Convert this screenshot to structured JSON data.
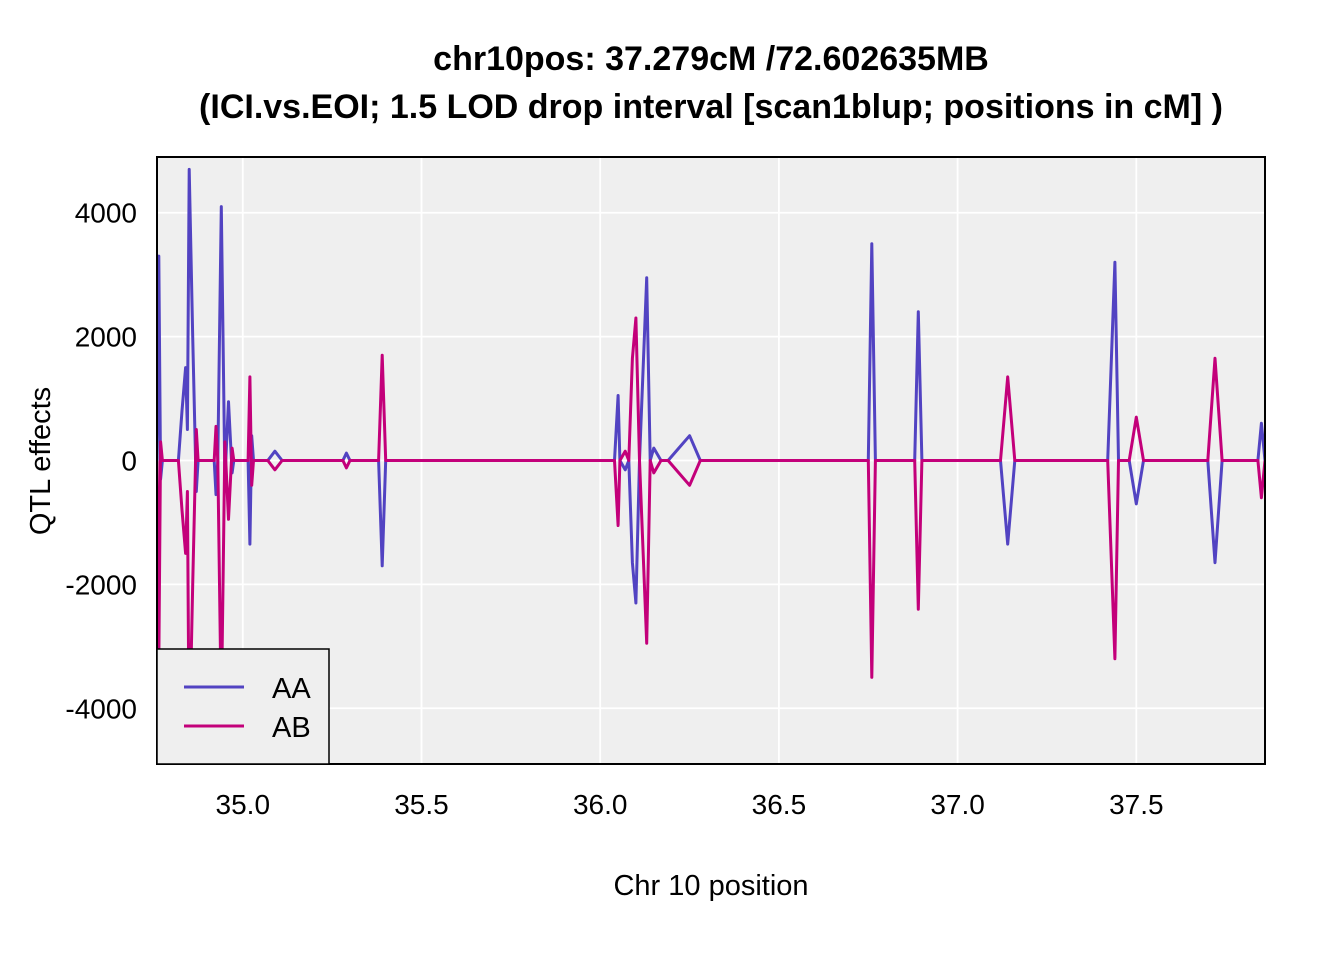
{
  "chart_data": {
    "type": "line",
    "title_line1": "chr10pos: 37.279cM /72.602635MB",
    "title_line2": "(ICI.vs.EOI; 1.5 LOD drop interval [scan1blup; positions in cM] )",
    "xlabel": "Chr 10 position",
    "ylabel": "QTL effects",
    "xlim": [
      34.76,
      37.86
    ],
    "ylim": [
      -4900,
      4900
    ],
    "x_ticks": [
      "35.0",
      "35.5",
      "36.0",
      "36.5",
      "37.0",
      "37.5"
    ],
    "y_ticks": [
      "4000",
      "2000",
      "0",
      "-2000",
      "-4000"
    ],
    "grid": true,
    "legend_position": "bottom-left",
    "colors": {
      "AA": "#5243c2",
      "AB": "#c3007a",
      "panel": "#efefef",
      "grid": "#ffffff"
    },
    "x": [
      34.76,
      34.765,
      34.77,
      34.775,
      34.8,
      34.815,
      34.82,
      34.83,
      34.84,
      34.845,
      34.85,
      34.86,
      34.87,
      34.875,
      34.88,
      34.92,
      34.925,
      34.93,
      34.94,
      34.95,
      34.96,
      34.97,
      34.975,
      34.98,
      34.985,
      34.99,
      34.995,
      35.0,
      35.01,
      35.015,
      35.02,
      35.025,
      35.03,
      35.035,
      35.04,
      35.06,
      35.07,
      35.09,
      35.11,
      35.2,
      35.28,
      35.29,
      35.3,
      35.35,
      35.38,
      35.39,
      35.4,
      35.5,
      35.6,
      35.8,
      36.0,
      36.04,
      36.05,
      36.055,
      36.07,
      36.08,
      36.09,
      36.1,
      36.11,
      36.13,
      36.14,
      36.15,
      36.17,
      36.19,
      36.22,
      36.25,
      36.28,
      36.4,
      36.6,
      36.75,
      36.76,
      36.77,
      36.86,
      36.88,
      36.89,
      36.9,
      37.0,
      37.1,
      37.12,
      37.14,
      37.16,
      37.3,
      37.42,
      37.44,
      37.45,
      37.48,
      37.5,
      37.52,
      37.6,
      37.7,
      37.72,
      37.74,
      37.8,
      37.84,
      37.85,
      37.86
    ],
    "series": [
      {
        "name": "AA",
        "values": [
          0,
          3300,
          -300,
          0,
          0,
          0,
          0,
          800,
          1500,
          500,
          4700,
          2000,
          -500,
          0,
          0,
          0,
          -550,
          0,
          4100,
          -300,
          950,
          -200,
          0,
          0,
          0,
          0,
          0,
          0,
          0,
          0,
          -1350,
          400,
          0,
          0,
          0,
          0,
          0,
          150,
          0,
          0,
          0,
          120,
          0,
          0,
          0,
          -1700,
          0,
          0,
          0,
          0,
          0,
          0,
          1050,
          0,
          -150,
          0,
          -1650,
          -2300,
          0,
          2950,
          0,
          200,
          0,
          0,
          200,
          400,
          0,
          0,
          0,
          0,
          3500,
          0,
          0,
          0,
          2400,
          0,
          0,
          0,
          0,
          -1350,
          0,
          0,
          0,
          3200,
          0,
          0,
          -700,
          0,
          0,
          0,
          -1650,
          0,
          0,
          0,
          600,
          0
        ]
      },
      {
        "name": "AB",
        "values": [
          0,
          -3300,
          300,
          0,
          0,
          0,
          0,
          -800,
          -1500,
          -500,
          -4700,
          -2000,
          500,
          0,
          0,
          0,
          550,
          0,
          -4100,
          300,
          -950,
          200,
          0,
          0,
          0,
          0,
          0,
          0,
          0,
          0,
          1350,
          -400,
          0,
          0,
          0,
          0,
          0,
          -150,
          0,
          0,
          0,
          -120,
          0,
          0,
          0,
          1700,
          0,
          0,
          0,
          0,
          0,
          0,
          -1050,
          0,
          150,
          0,
          1650,
          2300,
          0,
          -2950,
          0,
          -200,
          0,
          0,
          -200,
          -400,
          0,
          0,
          0,
          0,
          -3500,
          0,
          0,
          0,
          -2400,
          0,
          0,
          0,
          0,
          1350,
          0,
          0,
          0,
          -3200,
          0,
          0,
          700,
          0,
          0,
          0,
          1650,
          0,
          0,
          0,
          -600,
          0
        ]
      }
    ],
    "legend": [
      "AA",
      "AB"
    ]
  }
}
